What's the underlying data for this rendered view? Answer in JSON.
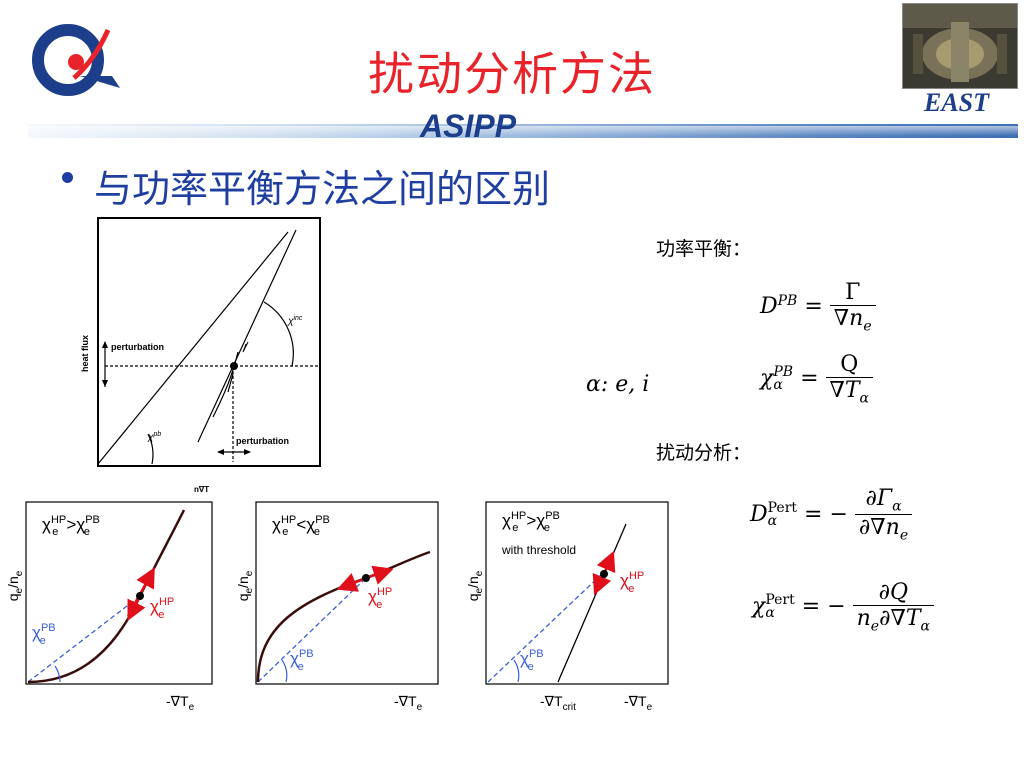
{
  "header": {
    "title": "扰动分析方法",
    "org": "ASIPP",
    "device": "EAST"
  },
  "bullet": {
    "text": "与功率平衡方法之间的区别"
  },
  "equations": {
    "power_balance_label": "功率平衡：",
    "alpha_label": "α: e, i",
    "perturb_label": "扰动分析：",
    "D_PB": {
      "lhs": "D",
      "lhs_sup": "PB",
      "num": "Γ",
      "den": "∇n",
      "den_sub": "e"
    },
    "chi_PB": {
      "lhs": "χ",
      "lhs_sup": "PB",
      "lhs_sub": "α",
      "num": "Q",
      "den": "∇T",
      "den_sub": "α"
    },
    "D_pert": {
      "lhs": "D",
      "lhs_sup": "Pert",
      "lhs_sub": "α",
      "num": "∂Γ",
      "num_sub": "α",
      "den": "∂∇n",
      "den_sub": "e"
    },
    "chi_pert": {
      "lhs": "χ",
      "lhs_sup": "Pert",
      "lhs_sub": "α",
      "num": "∂Q",
      "den_a": "n",
      "den_a_sub": "e",
      "den_b": "∂∇T",
      "den_sub": "α"
    },
    "eq": "=",
    "minus": "−"
  },
  "scan_figure": {
    "ylabel": "heat flux",
    "xlabel": "n∇T",
    "perturbation_top": "perturbation",
    "perturbation_bottom": "perturbation",
    "chi_inc": "χ",
    "chi_inc_sup": "inc",
    "chi_pb": "χ",
    "chi_pb_sup": "pb"
  },
  "panels": [
    {
      "relation_lhs": "χ",
      "lhs_sup": "HP",
      "lhs_sub": "e",
      "op": ">",
      "rel_rhs": "χ",
      "rhs_sup": "PB",
      "rhs_sub": "e",
      "note": "",
      "ylabel": "q",
      "ylabel_sub": "e",
      "ylabel_rest": "/n",
      "ylabel_rest_sub": "e",
      "xlabel": "-∇T",
      "xlabel_sub": "e",
      "hp": "χ",
      "hp_sup": "HP",
      "hp_sub": "e",
      "pb": "χ",
      "pb_sup": "PB",
      "pb_sub": "e",
      "crit": ""
    },
    {
      "relation_lhs": "χ",
      "lhs_sup": "HP",
      "lhs_sub": "e",
      "op": "<",
      "rel_rhs": "χ",
      "rhs_sup": "PB",
      "rhs_sub": "e",
      "note": "",
      "ylabel": "q",
      "ylabel_sub": "e",
      "ylabel_rest": "/n",
      "ylabel_rest_sub": "e",
      "xlabel": "-∇T",
      "xlabel_sub": "e",
      "hp": "χ",
      "hp_sup": "HP",
      "hp_sub": "e",
      "pb": "χ",
      "pb_sup": "PB",
      "pb_sub": "e",
      "crit": ""
    },
    {
      "relation_lhs": "χ",
      "lhs_sup": "HP",
      "lhs_sub": "e",
      "op": ">",
      "rel_rhs": "χ",
      "rhs_sup": "PB",
      "rhs_sub": "e",
      "note": "with threshold",
      "ylabel": "q",
      "ylabel_sub": "e",
      "ylabel_rest": "/n",
      "ylabel_rest_sub": "e",
      "xlabel": "-∇T",
      "xlabel_sub": "e",
      "hp": "χ",
      "hp_sup": "HP",
      "hp_sub": "e",
      "pb": "χ",
      "pb_sup": "PB",
      "pb_sub": "e",
      "crit": "-∇T",
      "crit_sub": "crit"
    }
  ],
  "colors": {
    "title": "#e8232a",
    "accent_blue": "#1e3fa0",
    "hp_red": "#e0101a",
    "pb_blue": "#3a5fd8"
  }
}
